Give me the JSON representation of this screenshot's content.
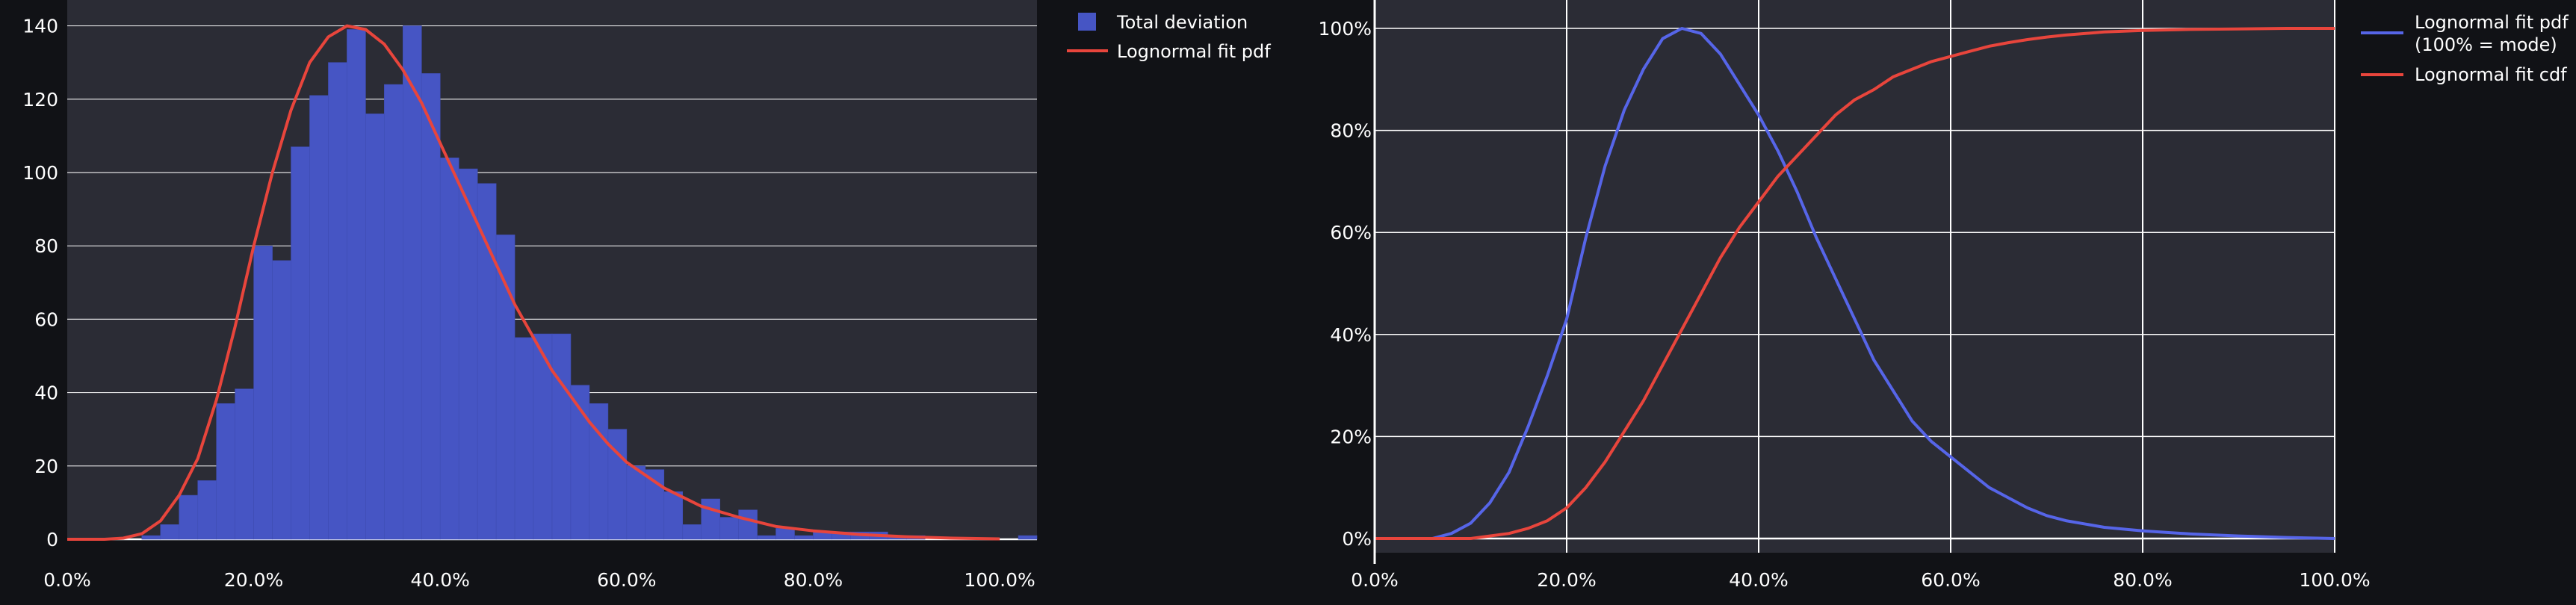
{
  "chart_data": [
    {
      "type": "bar",
      "title": "",
      "xlabel": "",
      "ylabel": "",
      "xlim": [
        0.0,
        1.04
      ],
      "ylim": [
        0,
        145
      ],
      "grid": true,
      "legend_position": "right",
      "x_tick_labels": [
        "0.0%",
        "20.0%",
        "40.0%",
        "60.0%",
        "80.0%",
        "100.0%"
      ],
      "x_ticks": [
        0.0,
        0.2,
        0.4,
        0.6,
        0.8,
        1.0
      ],
      "y_ticks": [
        0,
        20,
        40,
        60,
        80,
        100,
        120,
        140
      ],
      "y_tick_labels": [
        "0",
        "20",
        "40",
        "60",
        "80",
        "100",
        "120",
        "140"
      ],
      "bin_width": 0.02,
      "series": [
        {
          "name": "Total deviation",
          "kind": "histogram",
          "color": "#4655c4",
          "bins_start": [
            0.08,
            0.1,
            0.12,
            0.14,
            0.16,
            0.18,
            0.2,
            0.22,
            0.24,
            0.26,
            0.28,
            0.3,
            0.32,
            0.34,
            0.36,
            0.38,
            0.4,
            0.42,
            0.44,
            0.46,
            0.48,
            0.5,
            0.52,
            0.54,
            0.56,
            0.58,
            0.6,
            0.62,
            0.64,
            0.66,
            0.68,
            0.7,
            0.72,
            0.74,
            0.76,
            0.78,
            0.8,
            0.82,
            0.84,
            0.86,
            0.88,
            0.9,
            1.02
          ],
          "values": [
            1,
            4,
            12,
            16,
            37,
            41,
            80,
            76,
            107,
            121,
            130,
            139,
            116,
            124,
            140,
            127,
            104,
            101,
            97,
            83,
            55,
            56,
            56,
            42,
            37,
            30,
            20,
            19,
            13,
            4,
            11,
            6,
            8,
            1,
            3,
            1,
            2,
            2,
            2,
            2,
            1,
            1,
            1
          ]
        },
        {
          "name": "Lognormal fit pdf",
          "kind": "line",
          "color": "#e8453c",
          "x": [
            0.0,
            0.04,
            0.06,
            0.08,
            0.1,
            0.12,
            0.14,
            0.16,
            0.18,
            0.2,
            0.22,
            0.24,
            0.26,
            0.28,
            0.3,
            0.32,
            0.34,
            0.36,
            0.38,
            0.4,
            0.42,
            0.44,
            0.46,
            0.48,
            0.5,
            0.52,
            0.54,
            0.56,
            0.58,
            0.6,
            0.64,
            0.68,
            0.72,
            0.76,
            0.8,
            0.85,
            0.9,
            0.95,
            1.0
          ],
          "values": [
            0,
            0,
            0.3,
            1.5,
            5,
            12,
            22,
            38,
            58,
            80,
            100,
            117,
            130,
            137,
            140,
            139,
            135,
            128,
            119,
            108,
            97,
            86,
            75,
            64,
            55,
            46,
            39,
            32,
            26,
            21,
            14,
            9,
            6,
            3.5,
            2.3,
            1.3,
            0.7,
            0.3,
            0.1
          ]
        }
      ]
    },
    {
      "type": "line",
      "title": "",
      "xlabel": "",
      "ylabel": "",
      "xlim": [
        0.0,
        1.0
      ],
      "ylim": [
        0,
        1.0
      ],
      "grid": true,
      "legend_position": "right",
      "x_ticks": [
        0.0,
        0.2,
        0.4,
        0.6,
        0.8,
        1.0
      ],
      "x_tick_labels": [
        "0.0%",
        "20.0%",
        "40.0%",
        "60.0%",
        "80.0%",
        "100.0%"
      ],
      "y_ticks": [
        0,
        0.2,
        0.4,
        0.6,
        0.8,
        1.0
      ],
      "y_tick_labels": [
        "0%",
        "20%",
        "40%",
        "60%",
        "80%",
        "100%"
      ],
      "series": [
        {
          "name": "Lognormal fit pdf (100% = mode)",
          "name_lines": [
            "Lognormal fit pdf",
            "(100% = mode)"
          ],
          "color": "#5665e8",
          "x": [
            0.0,
            0.06,
            0.08,
            0.1,
            0.12,
            0.14,
            0.16,
            0.18,
            0.2,
            0.22,
            0.24,
            0.26,
            0.28,
            0.3,
            0.32,
            0.34,
            0.36,
            0.38,
            0.4,
            0.42,
            0.44,
            0.46,
            0.48,
            0.5,
            0.52,
            0.54,
            0.56,
            0.58,
            0.6,
            0.62,
            0.64,
            0.66,
            0.68,
            0.7,
            0.72,
            0.76,
            0.8,
            0.85,
            0.9,
            0.95,
            1.0
          ],
          "values": [
            0,
            0,
            0.01,
            0.03,
            0.07,
            0.13,
            0.22,
            0.32,
            0.43,
            0.59,
            0.73,
            0.84,
            0.92,
            0.98,
            1.0,
            0.99,
            0.95,
            0.89,
            0.83,
            0.76,
            0.68,
            0.59,
            0.51,
            0.43,
            0.35,
            0.29,
            0.23,
            0.19,
            0.16,
            0.13,
            0.1,
            0.08,
            0.06,
            0.045,
            0.035,
            0.022,
            0.015,
            0.009,
            0.005,
            0.002,
            0.0
          ]
        },
        {
          "name": "Lognormal fit cdf",
          "name_lines": [
            "Lognormal fit cdf"
          ],
          "color": "#e8453c",
          "x": [
            0.0,
            0.1,
            0.12,
            0.14,
            0.16,
            0.18,
            0.2,
            0.22,
            0.24,
            0.26,
            0.28,
            0.3,
            0.32,
            0.34,
            0.36,
            0.38,
            0.4,
            0.42,
            0.44,
            0.46,
            0.48,
            0.5,
            0.52,
            0.54,
            0.56,
            0.58,
            0.6,
            0.62,
            0.64,
            0.66,
            0.68,
            0.7,
            0.72,
            0.76,
            0.8,
            0.85,
            0.9,
            0.95,
            1.0
          ],
          "values": [
            0,
            0,
            0.005,
            0.01,
            0.02,
            0.035,
            0.06,
            0.1,
            0.15,
            0.21,
            0.27,
            0.34,
            0.41,
            0.48,
            0.55,
            0.61,
            0.66,
            0.71,
            0.75,
            0.79,
            0.83,
            0.86,
            0.88,
            0.905,
            0.92,
            0.935,
            0.945,
            0.955,
            0.965,
            0.972,
            0.978,
            0.983,
            0.987,
            0.993,
            0.996,
            0.998,
            0.999,
            1.0,
            1.0
          ]
        }
      ]
    }
  ]
}
